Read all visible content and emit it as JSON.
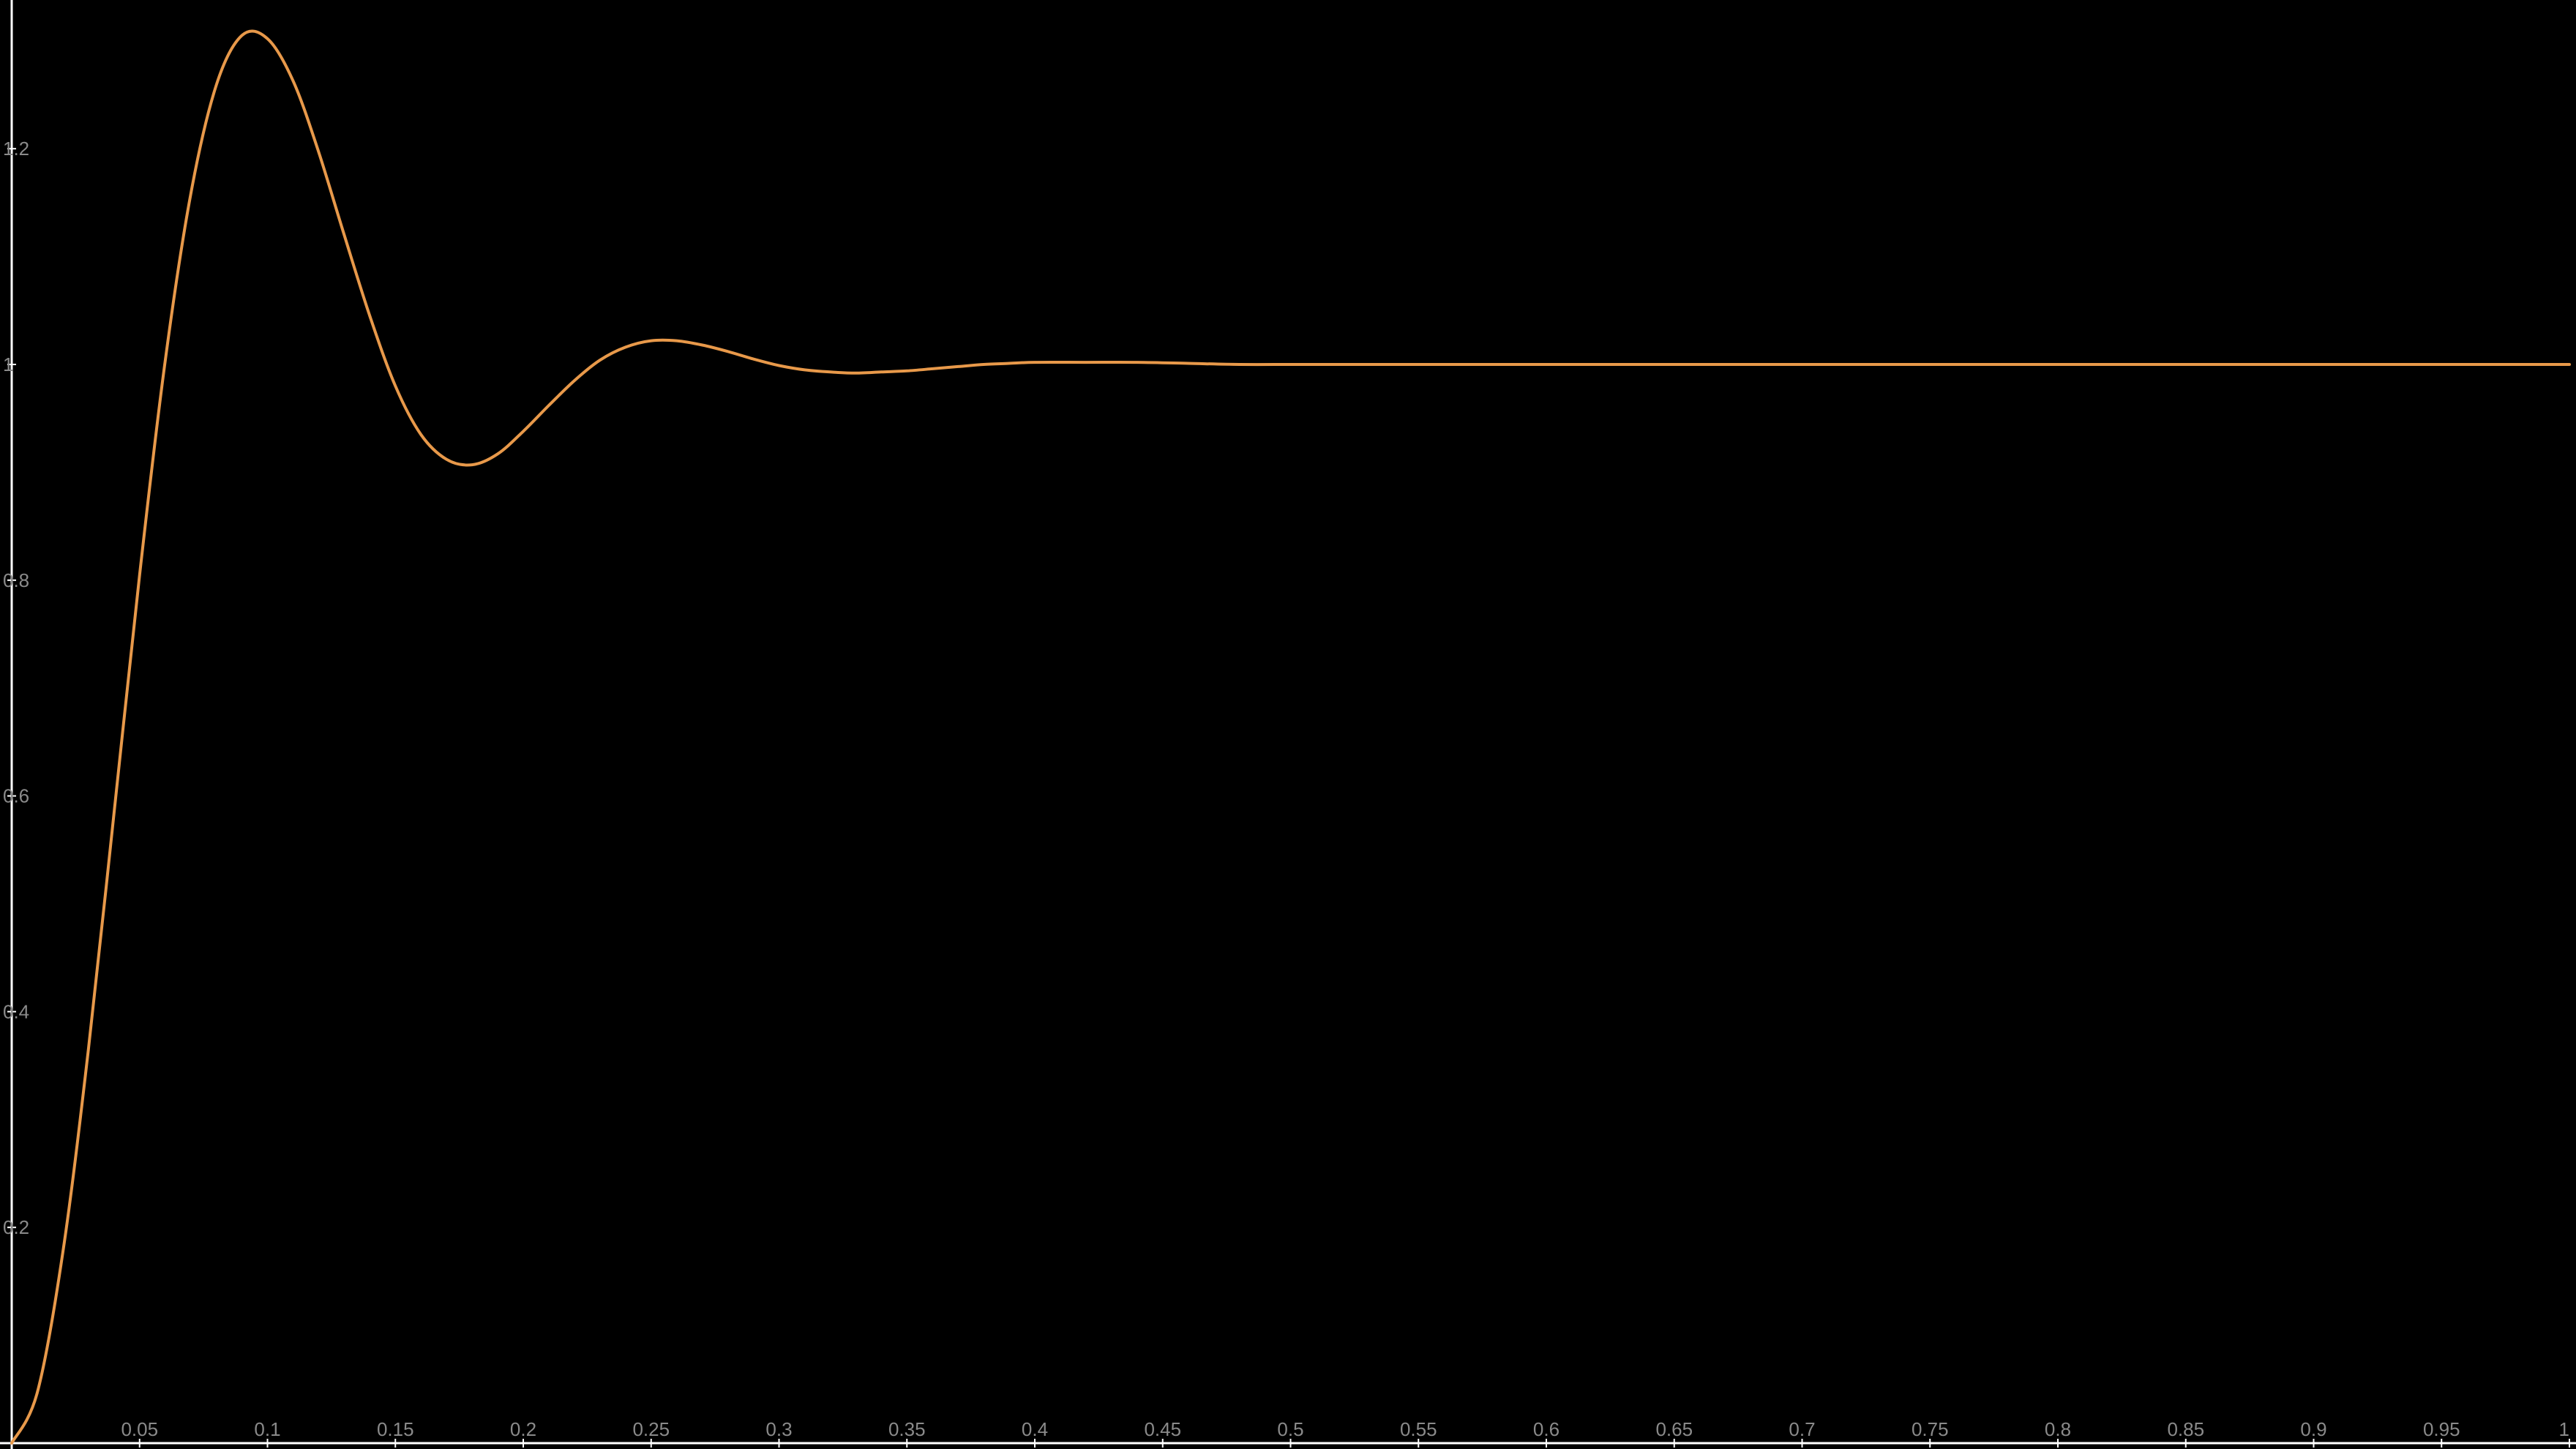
{
  "chart_data": {
    "type": "line",
    "title": "",
    "xlabel": "",
    "ylabel": "",
    "xlim": [
      0,
      1
    ],
    "ylim": [
      0,
      1.34
    ],
    "x_ticks": [
      0.05,
      0.1,
      0.15,
      0.2,
      0.25,
      0.3,
      0.35,
      0.4,
      0.45,
      0.5,
      0.55,
      0.6,
      0.65,
      0.7,
      0.75,
      0.8,
      0.85,
      0.9,
      0.95,
      1
    ],
    "x_tick_labels": [
      "0.05",
      "0.1",
      "0.15",
      "0.2",
      "0.25",
      "0.3",
      "0.35",
      "0.4",
      "0.45",
      "0.5",
      "0.55",
      "0.6",
      "0.65",
      "0.7",
      "0.75",
      "0.8",
      "0.85",
      "0.9",
      "0.95",
      "1"
    ],
    "y_ticks": [
      0.2,
      0.4,
      0.6,
      0.8,
      1,
      1.2
    ],
    "y_tick_labels": [
      "0.2",
      "0.4",
      "0.6",
      "0.8",
      "1",
      "1.2"
    ],
    "grid": false,
    "background": "#000000",
    "axis_color": "#ffffff",
    "tick_label_color": "#8a8a8a",
    "series": [
      {
        "color": "#e8994a",
        "x": [
          0,
          0.01,
          0.02,
          0.03,
          0.04,
          0.05,
          0.06,
          0.07,
          0.08,
          0.09,
          0.1,
          0.11,
          0.12,
          0.13,
          0.14,
          0.15,
          0.16,
          0.17,
          0.18,
          0.19,
          0.2,
          0.21,
          0.22,
          0.23,
          0.24,
          0.25,
          0.26,
          0.27,
          0.28,
          0.29,
          0.3,
          0.31,
          0.32,
          0.33,
          0.34,
          0.35,
          0.36,
          0.37,
          0.38,
          0.39,
          0.4,
          0.42,
          0.44,
          0.46,
          0.48,
          0.5,
          0.52,
          0.54,
          0.56,
          0.58,
          0.6,
          0.65,
          0.7,
          0.75,
          0.8,
          0.85,
          0.9,
          0.95,
          1.0
        ],
        "y": [
          0,
          0.047,
          0.177,
          0.365,
          0.584,
          0.805,
          1.003,
          1.158,
          1.259,
          1.305,
          1.302,
          1.263,
          1.197,
          1.12,
          1.045,
          0.98,
          0.935,
          0.912,
          0.907,
          0.917,
          0.938,
          0.962,
          0.985,
          1.004,
          1.016,
          1.022,
          1.022,
          1.018,
          1.012,
          1.005,
          0.999,
          0.995,
          0.993,
          0.992,
          0.993,
          0.994,
          0.996,
          0.998,
          1.0,
          1.001,
          1.002,
          1.002,
          1.002,
          1.001,
          1.0,
          1.0,
          1.0,
          1.0,
          1.0,
          1.0,
          1.0,
          1.0,
          1.0,
          1.0,
          1.0,
          1.0,
          1.0,
          1.0,
          1.0
        ]
      }
    ]
  }
}
